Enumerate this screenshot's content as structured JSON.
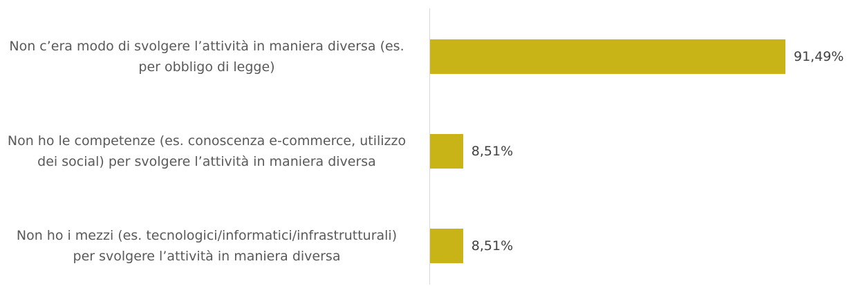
{
  "chart_data": {
    "type": "bar",
    "categories": [
      "Non c’era modo di svolgere l’attività in maniera diversa (es. per obbligo di legge)",
      "Non ho le competenze (es. conoscenza e-commerce, utilizzo dei social) per svolgere l’attività in maniera diversa",
      "Non ho i mezzi (es. tecnologici/informatici/infrastrutturali) per svolgere l’attività in maniera diversa"
    ],
    "values": [
      91.49,
      8.51,
      8.51
    ],
    "value_labels": [
      "91,49%",
      "8,51%",
      "8,51%"
    ],
    "color": "#c8b416"
  }
}
